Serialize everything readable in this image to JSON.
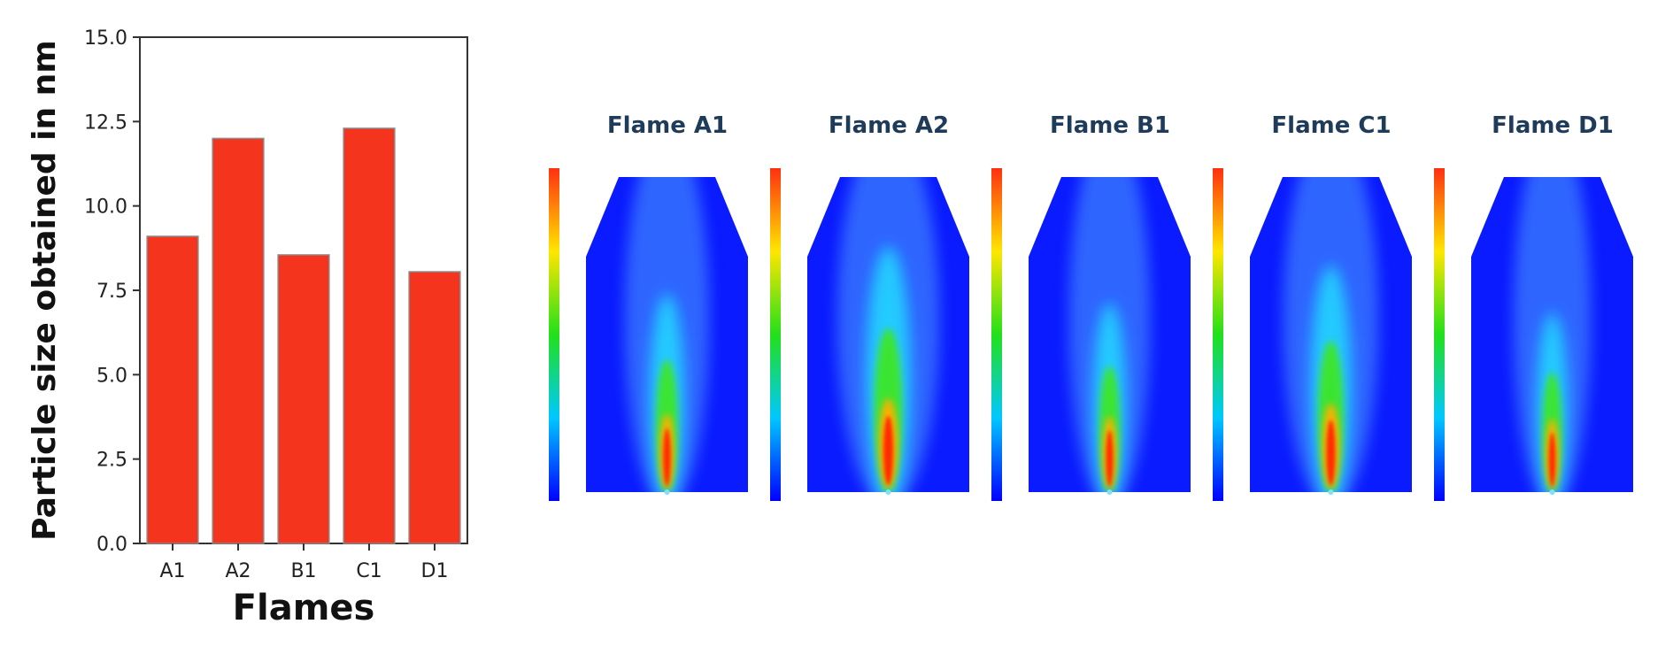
{
  "chart_data": [
    {
      "type": "bar",
      "categories": [
        "A1",
        "A2",
        "B1",
        "C1",
        "D1"
      ],
      "values": [
        9.1,
        12.0,
        8.55,
        12.3,
        8.05
      ],
      "xlabel": "Flames",
      "ylabel": "Particle size obtained in nm",
      "ylim": [
        0,
        15
      ],
      "yticks": [
        "0.0",
        "2.5",
        "5.0",
        "7.5",
        "10.0",
        "12.5",
        "15.0"
      ],
      "bar_color": "#f5341e",
      "grid": false,
      "legend": "none"
    },
    {
      "type": "heatmap",
      "panels": [
        {
          "title": "Flame A1",
          "peak_intensity": 0.7,
          "spread": 0.45
        },
        {
          "title": "Flame A2",
          "peak_intensity": 1.0,
          "spread": 0.7
        },
        {
          "title": "Flame B1",
          "peak_intensity": 0.65,
          "spread": 0.4
        },
        {
          "title": "Flame C1",
          "peak_intensity": 0.9,
          "spread": 0.6
        },
        {
          "title": "Flame D1",
          "peak_intensity": 0.6,
          "spread": 0.35
        }
      ],
      "colormap": "jet",
      "background_color": "#0a1bff"
    }
  ]
}
